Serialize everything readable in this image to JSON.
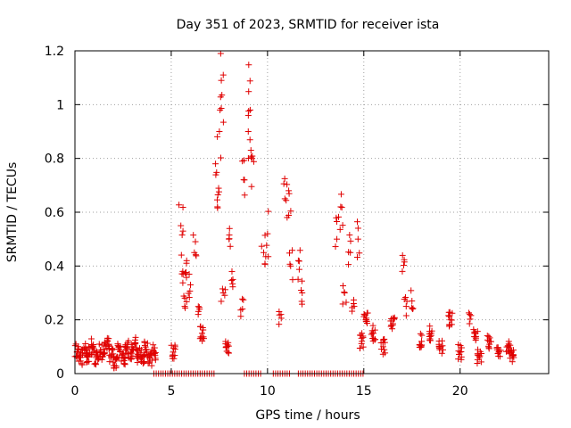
{
  "chart_data": {
    "type": "scatter",
    "title": "Day 351 of 2023, SRMTID for receiver ista",
    "xlabel": "GPS time / hours",
    "ylabel": "SRMTID / TECUs",
    "xlim": [
      0,
      24.6
    ],
    "ylim": [
      0,
      1.2
    ],
    "xticks": [
      0,
      5,
      10,
      15,
      20
    ],
    "yticks": [
      0,
      0.2,
      0.4,
      0.6,
      0.8,
      1,
      1.2
    ],
    "ytick_labels": [
      "0",
      "0.2",
      "0.4",
      "0.6",
      "0.8",
      "1",
      "1.2"
    ],
    "grid": true,
    "marker": "+",
    "color": "#e00000",
    "series": [
      {
        "name": "SRMTID",
        "points": [
          [
            0.1,
            0.08
          ],
          [
            0.3,
            0.06
          ],
          [
            0.5,
            0.09
          ],
          [
            0.7,
            0.07
          ],
          [
            0.9,
            0.1
          ],
          [
            1.1,
            0.06
          ],
          [
            1.3,
            0.08
          ],
          [
            1.5,
            0.09
          ],
          [
            1.7,
            0.12
          ],
          [
            1.9,
            0.07
          ],
          [
            2.1,
            0.05
          ],
          [
            2.3,
            0.09
          ],
          [
            2.5,
            0.06
          ],
          [
            2.7,
            0.1
          ],
          [
            2.9,
            0.08
          ],
          [
            3.1,
            0.11
          ],
          [
            3.3,
            0.07
          ],
          [
            3.5,
            0.06
          ],
          [
            3.7,
            0.09
          ],
          [
            3.9,
            0.05
          ],
          [
            4.1,
            0.08
          ],
          [
            5.1,
            0.08
          ],
          [
            5.5,
            0.55
          ],
          [
            5.6,
            0.38
          ],
          [
            5.7,
            0.25
          ],
          [
            5.8,
            0.42
          ],
          [
            6.0,
            0.33
          ],
          [
            6.2,
            0.45
          ],
          [
            6.4,
            0.22
          ],
          [
            6.6,
            0.15
          ],
          [
            7.3,
            0.78
          ],
          [
            7.4,
            0.62
          ],
          [
            7.5,
            0.9
          ],
          [
            7.6,
            1.09
          ],
          [
            7.7,
            0.3
          ],
          [
            7.9,
            0.1
          ],
          [
            8.0,
            0.5
          ],
          [
            8.2,
            0.35
          ],
          [
            8.7,
            0.24
          ],
          [
            8.8,
            0.72
          ],
          [
            9.0,
            0.9
          ],
          [
            9.1,
            0.98
          ],
          [
            9.2,
            0.8
          ],
          [
            9.8,
            0.45
          ],
          [
            10.0,
            0.52
          ],
          [
            10.7,
            0.22
          ],
          [
            10.9,
            0.65
          ],
          [
            11.1,
            0.68
          ],
          [
            11.2,
            0.4
          ],
          [
            11.6,
            0.42
          ],
          [
            11.8,
            0.3
          ],
          [
            13.6,
            0.5
          ],
          [
            13.8,
            0.62
          ],
          [
            14.0,
            0.3
          ],
          [
            14.3,
            0.45
          ],
          [
            14.5,
            0.25
          ],
          [
            14.7,
            0.5
          ],
          [
            14.9,
            0.12
          ],
          [
            15.1,
            0.2
          ],
          [
            15.5,
            0.15
          ],
          [
            16.0,
            0.1
          ],
          [
            16.5,
            0.18
          ],
          [
            17.0,
            0.38
          ],
          [
            17.2,
            0.25
          ],
          [
            17.5,
            0.27
          ],
          [
            18.0,
            0.12
          ],
          [
            18.5,
            0.15
          ],
          [
            19.0,
            0.1
          ],
          [
            19.5,
            0.2
          ],
          [
            20.0,
            0.08
          ],
          [
            20.5,
            0.22
          ],
          [
            20.8,
            0.15
          ],
          [
            21.0,
            0.06
          ],
          [
            21.5,
            0.12
          ],
          [
            22.0,
            0.08
          ],
          [
            22.5,
            0.1
          ],
          [
            22.7,
            0.07
          ]
        ]
      }
    ],
    "zero_markers_x_ranges": [
      [
        4.1,
        7.3
      ],
      [
        8.8,
        9.7
      ],
      [
        10.3,
        11.2
      ],
      [
        11.6,
        13.9
      ],
      [
        14.0,
        15.0
      ]
    ]
  }
}
